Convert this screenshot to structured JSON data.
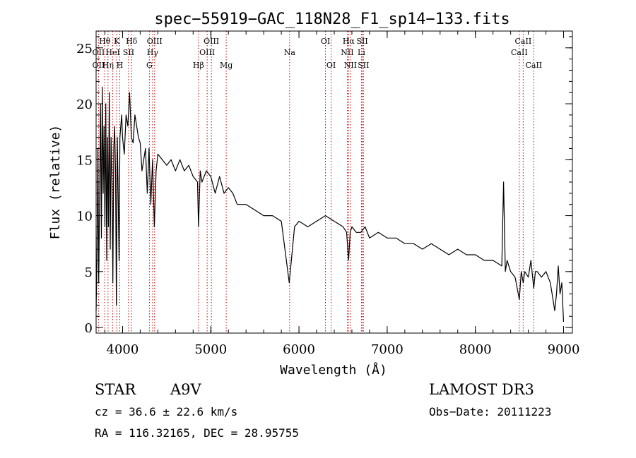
{
  "chart_data": {
    "type": "line",
    "title": "spec−55919−GAC_118N28_F1_sp14−133.fits",
    "xlabel": "Wavelength (Å)",
    "ylabel": "Flux (relative)",
    "xlim": [
      3700,
      9100
    ],
    "ylim": [
      -0.5,
      26.5
    ],
    "xticks": [
      4000,
      5000,
      6000,
      7000,
      8000,
      9000
    ],
    "yticks": [
      0,
      5,
      10,
      15,
      20,
      25
    ],
    "xminor_step": 200,
    "yminor_step": 1,
    "series": [
      {
        "name": "spectrum",
        "x": [
          3700,
          3710,
          3720,
          3730,
          3740,
          3750,
          3760,
          3770,
          3780,
          3790,
          3800,
          3810,
          3820,
          3830,
          3840,
          3850,
          3860,
          3870,
          3880,
          3890,
          3900,
          3910,
          3920,
          3930,
          3940,
          3950,
          3960,
          3970,
          3980,
          3990,
          4000,
          4020,
          4040,
          4060,
          4080,
          4100,
          4120,
          4140,
          4160,
          4180,
          4200,
          4220,
          4240,
          4260,
          4280,
          4300,
          4320,
          4340,
          4360,
          4380,
          4400,
          4450,
          4500,
          4550,
          4600,
          4650,
          4700,
          4750,
          4800,
          4850,
          4861,
          4880,
          4900,
          4950,
          5000,
          5050,
          5100,
          5150,
          5200,
          5250,
          5300,
          5400,
          5500,
          5600,
          5700,
          5800,
          5890,
          5950,
          6000,
          6100,
          6200,
          6300,
          6400,
          6500,
          6540,
          6563,
          6580,
          6600,
          6650,
          6700,
          6750,
          6800,
          6900,
          7000,
          7100,
          7200,
          7300,
          7400,
          7500,
          7600,
          7700,
          7800,
          7900,
          8000,
          8100,
          8200,
          8300,
          8320,
          8340,
          8360,
          8400,
          8450,
          8498,
          8520,
          8542,
          8560,
          8600,
          8630,
          8662,
          8680,
          8700,
          8750,
          8800,
          8850,
          8900,
          8920,
          8940,
          8960,
          8980,
          9000
        ],
        "y": [
          1.5,
          6,
          16,
          4,
          12,
          20,
          8,
          21.5,
          12,
          18,
          9,
          20,
          6,
          17,
          9,
          21,
          7,
          17,
          13,
          4,
          16,
          18,
          14,
          2,
          17,
          12,
          6,
          17,
          18,
          19,
          17,
          15.5,
          19,
          18,
          21,
          17,
          16.5,
          19,
          18,
          17,
          16.5,
          14,
          15,
          16,
          12,
          16,
          11,
          15,
          9,
          14,
          15.5,
          15,
          14.5,
          15,
          14,
          15,
          14,
          14.5,
          13.5,
          13,
          9,
          14,
          13,
          14,
          13.5,
          12,
          13.5,
          12,
          12.5,
          12,
          11,
          11,
          10.5,
          10,
          10,
          9.5,
          4,
          9,
          9.5,
          9,
          9.5,
          10,
          9.5,
          9,
          8.5,
          6,
          8.5,
          9,
          8.5,
          8.5,
          9,
          8,
          8.5,
          8,
          8,
          7.5,
          7.5,
          7,
          7.5,
          7,
          6.5,
          7,
          6.5,
          6.5,
          6,
          6,
          5.5,
          13,
          5,
          6,
          5,
          4.5,
          2.5,
          5,
          4,
          5,
          4.5,
          6,
          3.5,
          5,
          5,
          4.5,
          5,
          4,
          1.5,
          3,
          5.5,
          3,
          4,
          0.5
        ]
      }
    ],
    "lines": [
      {
        "label": "Hθ",
        "wave": 3798,
        "row": 1
      },
      {
        "label": "OII",
        "wave": 3727,
        "row": 2
      },
      {
        "label": "OII",
        "wave": 3727,
        "row": 3
      },
      {
        "label": "Hη",
        "wave": 3835,
        "row": 3
      },
      {
        "label": "K",
        "wave": 3934,
        "row": 1
      },
      {
        "label": "HeI",
        "wave": 3889,
        "row": 2
      },
      {
        "label": "H",
        "wave": 3968,
        "row": 3
      },
      {
        "label": "SII",
        "wave": 4068,
        "row": 2
      },
      {
        "label": "Hδ",
        "wave": 4102,
        "row": 1
      },
      {
        "label": "OIII",
        "wave": 4363,
        "row": 1
      },
      {
        "label": "Hγ",
        "wave": 4340,
        "row": 2
      },
      {
        "label": "G",
        "wave": 4304,
        "row": 3
      },
      {
        "label": "Hβ",
        "wave": 4861,
        "row": 3
      },
      {
        "label": "OIII",
        "wave": 5007,
        "row": 1
      },
      {
        "label": "OIII",
        "wave": 4959,
        "row": 2
      },
      {
        "label": "Mg",
        "wave": 5175,
        "row": 3
      },
      {
        "label": "Na",
        "wave": 5894,
        "row": 2
      },
      {
        "label": "OI",
        "wave": 6300,
        "row": 1
      },
      {
        "label": "OI",
        "wave": 6364,
        "row": 3
      },
      {
        "label": "Hα",
        "wave": 6563,
        "row": 1
      },
      {
        "label": "NII",
        "wave": 6548,
        "row": 2
      },
      {
        "label": "NII",
        "wave": 6584,
        "row": 3
      },
      {
        "label": "SII",
        "wave": 6717,
        "row": 1
      },
      {
        "label": "Li",
        "wave": 6708,
        "row": 2
      },
      {
        "label": "SII",
        "wave": 6731,
        "row": 3
      },
      {
        "label": "CaII",
        "wave": 8542,
        "row": 1
      },
      {
        "label": "CaII",
        "wave": 8498,
        "row": 2
      },
      {
        "label": "CaII",
        "wave": 8662,
        "row": 3
      }
    ]
  },
  "info": {
    "object_class": "STAR",
    "subclass": "A9V",
    "survey": "LAMOST DR3",
    "cz": "cz = 36.6 ± 22.6 km/s",
    "obs_date": "Obs−Date: 20111223",
    "coords": "RA = 116.32165, DEC =  28.95755"
  },
  "colors": {
    "spectrum": "#000000",
    "line_marker": "#cc0000",
    "axis": "#000000"
  }
}
